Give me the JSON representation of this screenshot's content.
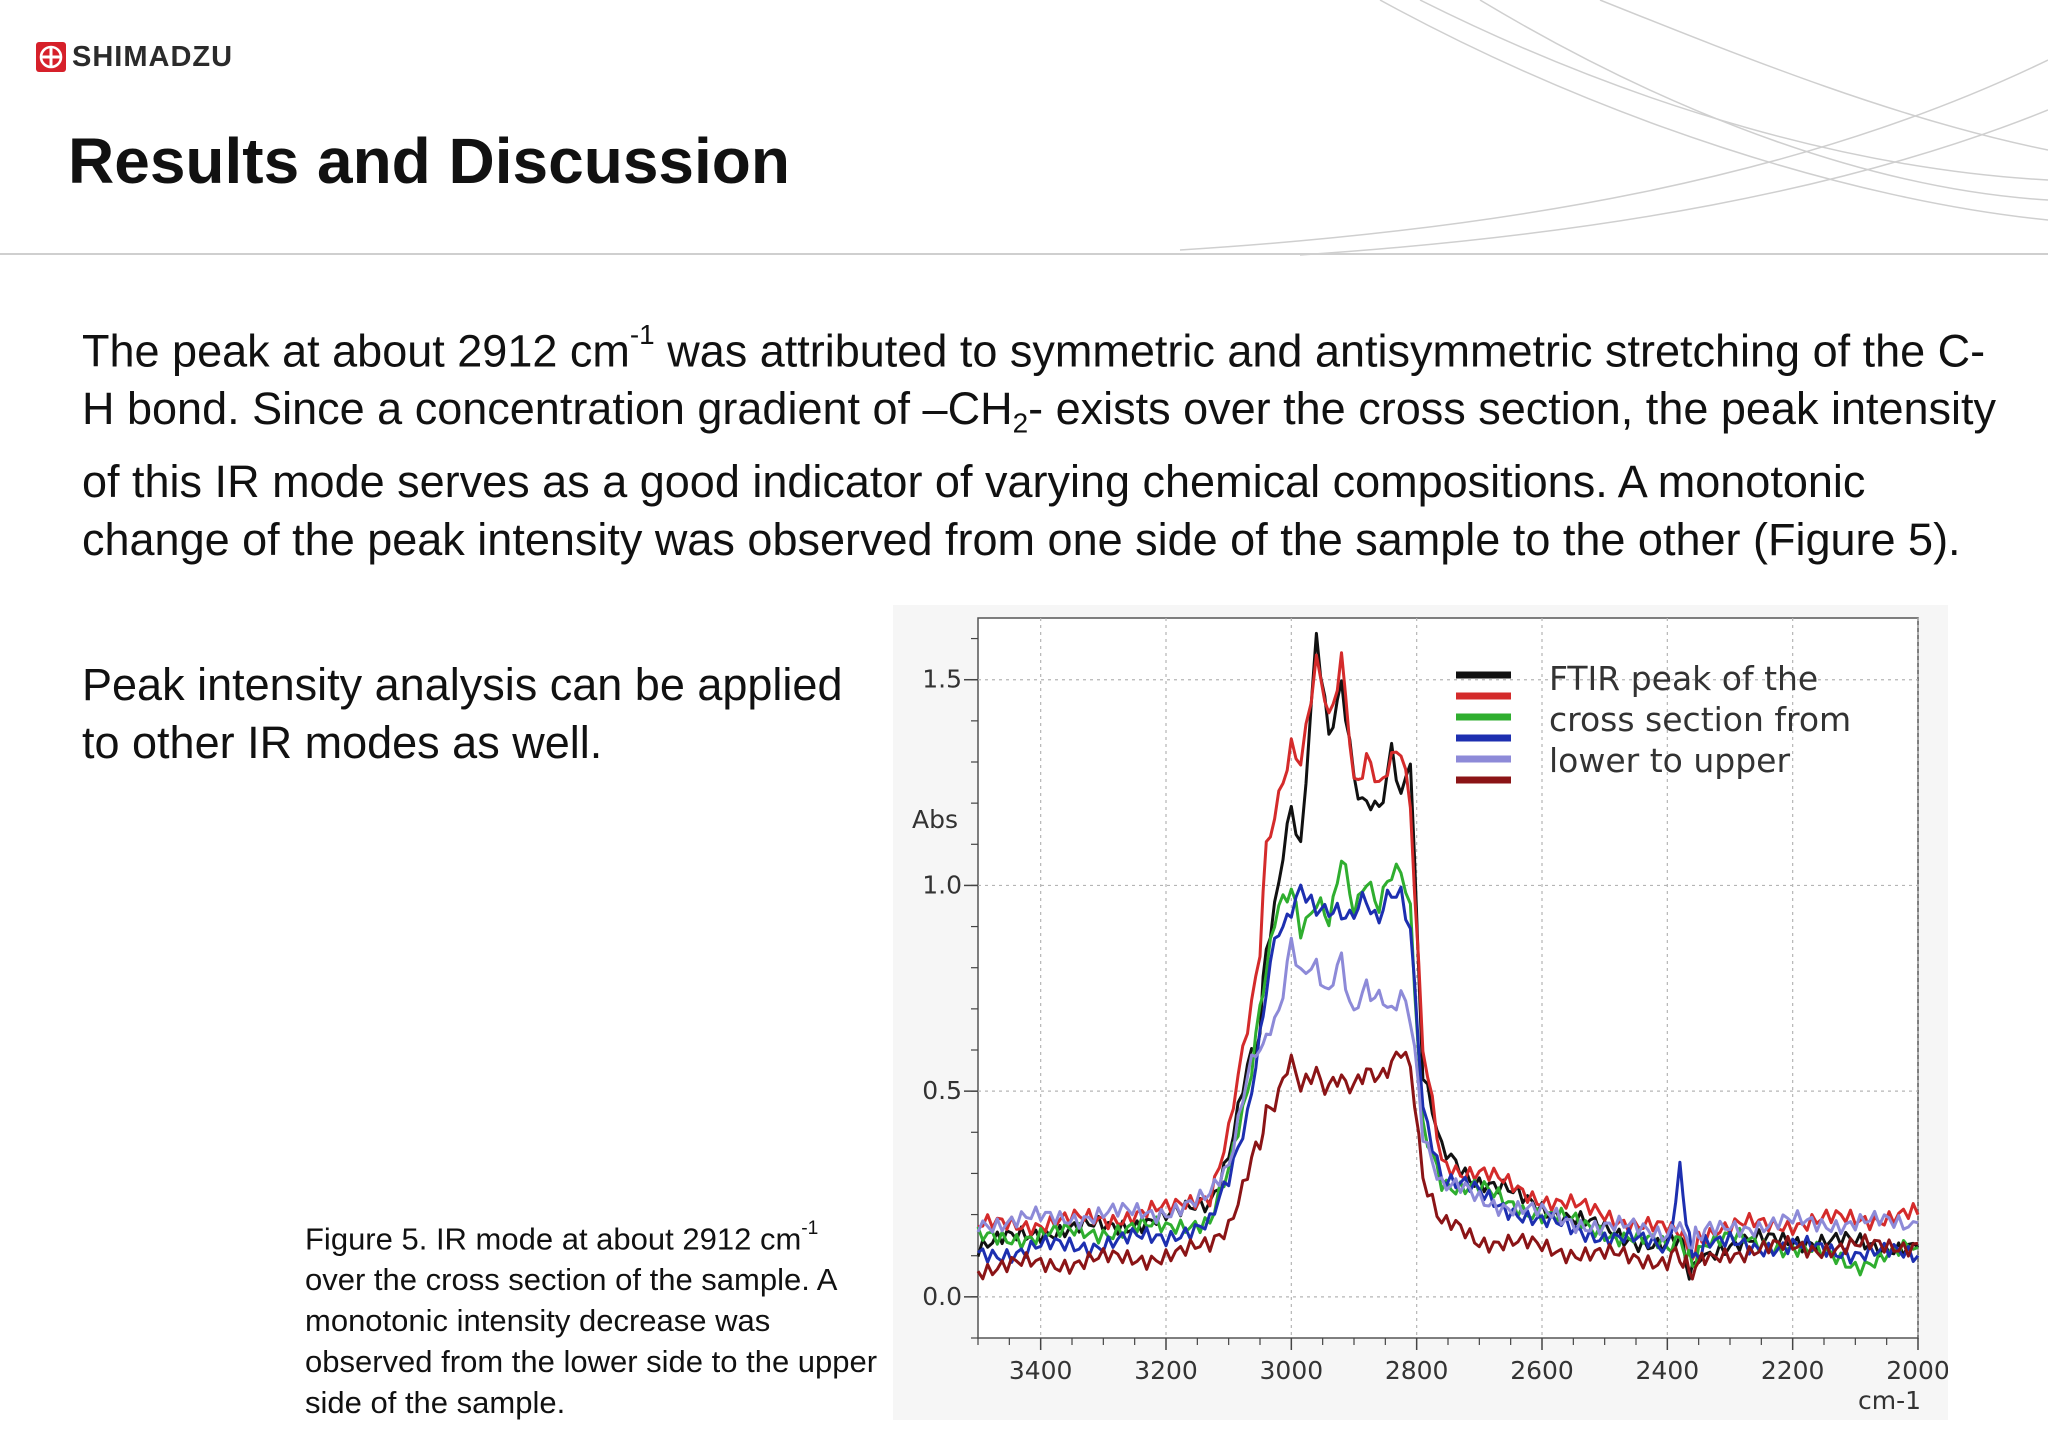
{
  "header": {
    "logo_text": "SHIMADZU",
    "title": "Results and Discussion"
  },
  "body": {
    "p1_a": "The peak at about 2912 cm",
    "p1_sup": "-1",
    "p1_b": " was attributed to symmetric and antisymmetric stretching of the C-H bond. Since a concentration gradient of –CH",
    "p1_sub": "2",
    "p1_c": "- exists over the cross section, the peak intensity of this IR mode serves as a good indicator of varying chemical compositions. A monotonic change of the peak intensity was observed from one side of the sample to the other (Figure 5).",
    "p2": "Peak intensity analysis can be applied to other IR modes as well."
  },
  "caption": {
    "a": "Figure 5. IR mode at about 2912 cm",
    "sup": "-1",
    "b": " over the cross section of the sample. A monotonic intensity decrease was observed from the lower side to the upper side of the sample."
  },
  "colors": {
    "logo_red": "#d6202a",
    "black_series": "#111111",
    "red_series": "#d42b2b",
    "green_series": "#2fae2f",
    "blue_series": "#1d2fb0",
    "lavender_series": "#8d8ad8",
    "darkred_series": "#8b1416"
  },
  "chart_data": {
    "type": "line",
    "title": "",
    "xlabel": "cm-1",
    "ylabel": "Abs",
    "xlim": [
      3500,
      2000
    ],
    "ylim": [
      -0.1,
      1.65
    ],
    "x_ticks": [
      "3400",
      "3200",
      "3000",
      "2800",
      "2600",
      "2400",
      "2200",
      "2000"
    ],
    "y_ticks": [
      "0.0",
      "0.5",
      "1.0",
      "1.5"
    ],
    "grid": true,
    "legend": {
      "position": "top-right",
      "text_lines": [
        "FTIR peak of the",
        "cross section from",
        "lower to upper"
      ]
    },
    "x": [
      3500,
      3400,
      3300,
      3200,
      3130,
      3100,
      3070,
      3050,
      3040,
      3020,
      3000,
      2985,
      2960,
      2940,
      2920,
      2900,
      2880,
      2860,
      2840,
      2825,
      2810,
      2790,
      2760,
      2700,
      2600,
      2500,
      2400,
      2380,
      2370,
      2360,
      2350,
      2340,
      2300,
      2200,
      2100,
      2000
    ],
    "series": [
      {
        "name": "black",
        "color": "#111111",
        "values": [
          0.12,
          0.16,
          0.17,
          0.19,
          0.23,
          0.35,
          0.55,
          0.65,
          0.85,
          1.0,
          1.2,
          1.1,
          1.62,
          1.35,
          1.5,
          1.25,
          1.2,
          1.18,
          1.33,
          1.2,
          1.3,
          0.55,
          0.35,
          0.28,
          0.22,
          0.16,
          0.12,
          0.15,
          0.08,
          0.06,
          0.09,
          0.11,
          0.13,
          0.14,
          0.13,
          0.12
        ]
      },
      {
        "name": "red",
        "color": "#d42b2b",
        "values": [
          0.17,
          0.18,
          0.19,
          0.21,
          0.25,
          0.4,
          0.65,
          0.85,
          1.1,
          1.2,
          1.35,
          1.3,
          1.55,
          1.4,
          1.55,
          1.25,
          1.3,
          1.25,
          1.3,
          1.32,
          1.2,
          0.6,
          0.32,
          0.3,
          0.24,
          0.2,
          0.16,
          0.17,
          0.12,
          0.1,
          0.13,
          0.15,
          0.17,
          0.18,
          0.19,
          0.2
        ]
      },
      {
        "name": "green",
        "color": "#2fae2f",
        "values": [
          0.14,
          0.15,
          0.16,
          0.17,
          0.19,
          0.3,
          0.5,
          0.7,
          0.8,
          0.95,
          1.0,
          0.88,
          0.95,
          0.92,
          1.06,
          0.95,
          1.0,
          0.96,
          1.02,
          1.04,
          0.95,
          0.4,
          0.28,
          0.26,
          0.2,
          0.16,
          0.12,
          0.15,
          0.1,
          0.08,
          0.11,
          0.12,
          0.14,
          0.12,
          0.08,
          0.12
        ]
      },
      {
        "name": "blue",
        "color": "#1d2fb0",
        "values": [
          0.1,
          0.12,
          0.13,
          0.15,
          0.18,
          0.28,
          0.45,
          0.62,
          0.75,
          0.9,
          0.93,
          0.98,
          0.93,
          0.95,
          0.92,
          0.94,
          0.96,
          0.92,
          0.98,
          0.99,
          0.9,
          0.45,
          0.3,
          0.25,
          0.18,
          0.15,
          0.12,
          0.3,
          0.2,
          0.09,
          0.11,
          0.12,
          0.13,
          0.12,
          0.11,
          0.1
        ]
      },
      {
        "name": "lavender",
        "color": "#8d8ad8",
        "values": [
          0.18,
          0.19,
          0.2,
          0.21,
          0.24,
          0.32,
          0.55,
          0.6,
          0.62,
          0.7,
          0.85,
          0.78,
          0.8,
          0.74,
          0.82,
          0.68,
          0.76,
          0.72,
          0.7,
          0.75,
          0.68,
          0.4,
          0.28,
          0.24,
          0.2,
          0.17,
          0.16,
          0.17,
          0.14,
          0.13,
          0.15,
          0.16,
          0.17,
          0.18,
          0.18,
          0.18
        ]
      },
      {
        "name": "dark red",
        "color": "#8b1416",
        "values": [
          0.07,
          0.08,
          0.09,
          0.1,
          0.12,
          0.18,
          0.3,
          0.38,
          0.44,
          0.5,
          0.57,
          0.52,
          0.55,
          0.5,
          0.54,
          0.5,
          0.56,
          0.52,
          0.58,
          0.6,
          0.55,
          0.3,
          0.18,
          0.14,
          0.12,
          0.1,
          0.09,
          0.1,
          0.07,
          0.06,
          0.08,
          0.1,
          0.11,
          0.12,
          0.12,
          0.13
        ]
      }
    ]
  }
}
